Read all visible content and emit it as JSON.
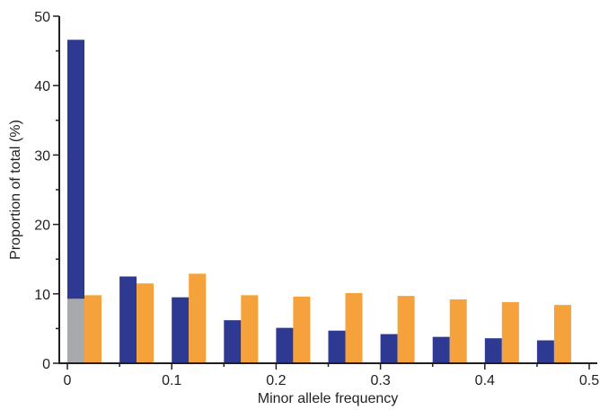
{
  "chart_data": {
    "type": "bar",
    "xlabel": "Minor allele frequency",
    "ylabel": "Proportion of total (%)",
    "ylim": [
      0,
      50
    ],
    "xlim": [
      0,
      0.5
    ],
    "yticks": [
      "0",
      "10",
      "20",
      "30",
      "40",
      "50"
    ],
    "xticks": [
      "0",
      "0.1",
      "0.2",
      "0.3",
      "0.4",
      "0.5"
    ],
    "grid": false,
    "legend": false,
    "bins": [
      {
        "blue": 46.6,
        "orange": 9.8,
        "gray": 9.3
      },
      {
        "blue": 12.5,
        "orange": 11.5
      },
      {
        "blue": 9.5,
        "orange": 12.9
      },
      {
        "blue": 6.2,
        "orange": 9.8
      },
      {
        "blue": 5.1,
        "orange": 9.6
      },
      {
        "blue": 4.7,
        "orange": 10.1
      },
      {
        "blue": 4.2,
        "orange": 9.7
      },
      {
        "blue": 3.8,
        "orange": 9.2
      },
      {
        "blue": 3.6,
        "orange": 8.8
      },
      {
        "blue": 3.3,
        "orange": 8.4
      }
    ],
    "colors": {
      "blue": "#2e3a92",
      "orange": "#f6a23c",
      "gray": "#a7a9ac",
      "axis": "#231f20"
    }
  }
}
